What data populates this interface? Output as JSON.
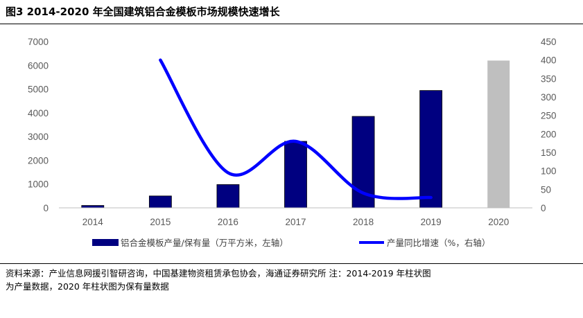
{
  "header": {
    "title": "图3  2014-2020 年全国建筑铝合金模板市场规模快速增长"
  },
  "footer": {
    "source_line1": "资料来源：产业信息网援引智研咨询，中国基建物资租赁承包协会，海通证券研究所  注：2014-2019 年柱状图",
    "source_line2": "为产量数据，2020 年柱状图为保有量数据"
  },
  "chart_data": {
    "type": "bar",
    "categories": [
      "2014",
      "2015",
      "2016",
      "2017",
      "2018",
      "2019",
      "2020"
    ],
    "series": [
      {
        "name": "铝合金模板产量/保有量（万平方米，左轴）",
        "axis": "left",
        "values": [
          100,
          500,
          980,
          2800,
          3850,
          4940,
          6200
        ],
        "colors": [
          "#000080",
          "#000080",
          "#000080",
          "#000080",
          "#000080",
          "#000080",
          "#bfbfbf"
        ]
      },
      {
        "name": "产量同比增速（%，右轴）",
        "type": "line",
        "axis": "right",
        "color": "#0000ff",
        "x": [
          "2015",
          "2016",
          "2017",
          "2018",
          "2019"
        ],
        "values": [
          400,
          95,
          180,
          40,
          28
        ]
      }
    ],
    "y_left": {
      "ticks": [
        "0",
        "1000",
        "2000",
        "3000",
        "4000",
        "5000",
        "6000",
        "7000"
      ],
      "ylim": [
        0,
        7000
      ]
    },
    "y_right": {
      "ticks": [
        "0",
        "50",
        "100",
        "150",
        "200",
        "250",
        "300",
        "350",
        "400",
        "450"
      ],
      "ylim": [
        0,
        450
      ]
    },
    "grid": false,
    "legend": "bottom"
  }
}
